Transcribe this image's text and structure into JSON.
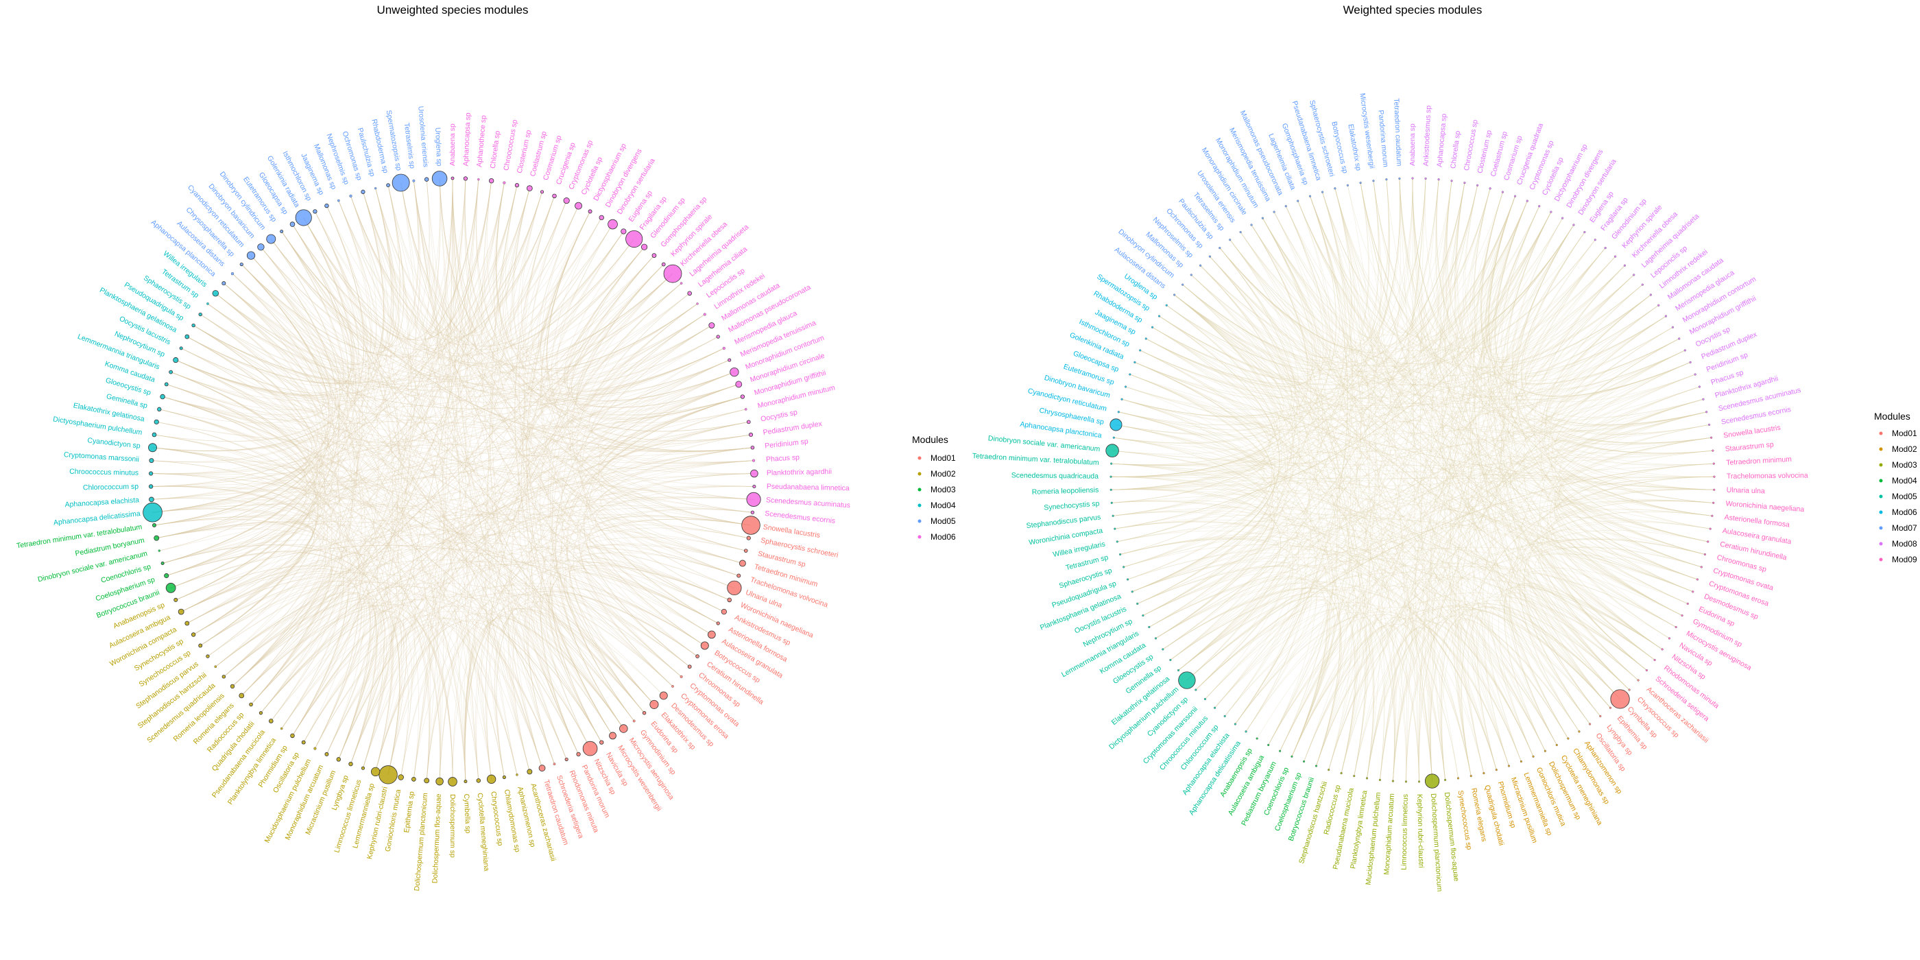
{
  "chart_data": [
    {
      "type": "chord",
      "title": "Unweighted species modules",
      "legend": {
        "title": "Modules",
        "placement": "right",
        "entries": [
          "Mod01",
          "Mod02",
          "Mod03",
          "Mod04",
          "Mod05",
          "Mod06"
        ]
      },
      "module_colors": {
        "Mod01": "#F8766D",
        "Mod02": "#B79F00",
        "Mod03": "#00BA38",
        "Mod04": "#00BFC4",
        "Mod05": "#619CFF",
        "Mod06": "#F564E3"
      },
      "edge_color": "#D9C9A3",
      "modules": [
        {
          "module": "Mod06",
          "species": [
            "Anabaena sp",
            "Aphanocapsa sp",
            "Aphanothece sp",
            "Chlorella sp",
            "Chroococcus sp",
            "Closterium sp",
            "Coelastrum sp",
            "Cosmarium sp",
            "Crucigenia sp",
            "Cryptomonas sp",
            "Cyclotella sp",
            "Dictyosphaerium sp",
            "Dinobryon divergens",
            "Dinobryon sertularia",
            "Euglena sp",
            "Fragilaria sp",
            "Glenodinium sp",
            "Gomphosphaeria sp",
            "Kephyrion spirale",
            "Kirchneriella obesa",
            "Lagerheimia quadriseta",
            "Lagerheimia ciliata",
            "Lepocinclis sp",
            "Limnothrix redekei",
            "Mallomonas caudata",
            "Mallomonas pseudocoronata",
            "Merismopedia glauca",
            "Merismopedia tenuissima",
            "Monoraphidium contortum",
            "Monoraphidium circinale",
            "Monoraphidium griffithii",
            "Monoraphidium minutum",
            "Oocystis sp",
            "Pediastrum duplex",
            "Peridinium sp",
            "Phacus sp",
            "Planktothrix agardhii",
            "Pseudanabaena limnetica",
            "Scenedesmus acuminatus",
            "Scenedesmus ecornis"
          ]
        },
        {
          "module": "Mod01",
          "species": [
            "Snowella lacustris",
            "Sphaerocystis schroeteri",
            "Staurastrum sp",
            "Tetraedron minimum",
            "Trachelomonas volvocina",
            "Ulnaria ulna",
            "Woronichinia naegeliana",
            "Ankistrodesmus sp",
            "Asterionella formosa",
            "Aulacoseira granulata",
            "Botryococcus sp",
            "Ceratium hirundinella",
            "Chroomonas sp",
            "Cryptomonas ovata",
            "Cryptomonas erosa",
            "Desmodesmus sp",
            "Elakatothrix sp",
            "Eudorina sp",
            "Gymnodinium sp",
            "Microcystis aeruginosa",
            "Microcystis wesenbergii",
            "Navicula sp",
            "Nitzschia sp",
            "Pandorina morum",
            "Rhodomonas minuta",
            "Schroederia setigera",
            "Tetraedron caudatum"
          ]
        },
        {
          "module": "Mod02",
          "species": [
            "Acanthoceras zachariasii",
            "Aphanizomenon sp",
            "Chlamydomonas sp",
            "Chrysococcus sp",
            "Cyclotella meneghiniana",
            "Cymbella sp",
            "Dolichospermum sp",
            "Dolichospermum flos-aquae",
            "Dolichospermum planctonicum",
            "Epithemia sp",
            "Goniochloris mutica",
            "Kephyrion rubri-claustri",
            "Lemmermanniella sp",
            "Limnococcus limneticus",
            "Lyngbya sp",
            "Micractinium pusillum",
            "Monoraphidium arcuatum",
            "Mucidosphaerium pulchellum",
            "Oscillatoria sp",
            "Phormidium sp",
            "Planktolyngbya limnetica",
            "Pseudanabaena mucicola",
            "Quadrigula chodatii",
            "Radiococcus sp",
            "Romeria elegans",
            "Romeria leopoliensis",
            "Scenedesmus quadricauda",
            "Stephanodiscus hantzschii",
            "Stephanodiscus parvus",
            "Synechococcus sp",
            "Synechocystis sp",
            "Woronichinia compacta",
            "Aulacoseira ambigua",
            "Anabaenopsis sp"
          ]
        },
        {
          "module": "Mod03",
          "species": [
            "Botryococcus braunii",
            "Coelosphaerium sp",
            "Coenochloris sp",
            "Dinobryon sociale var. americanum",
            "Pediastrum boryanum",
            "Tetraedron minimum var. tetralobulatum"
          ]
        },
        {
          "module": "Mod04",
          "species": [
            "Aphanocapsa delicatissima",
            "Aphanocapsa elachista",
            "Chlorococcum sp",
            "Chroococcus minutus",
            "Cryptomonas marssonii",
            "Cyanodictyon sp",
            "Dictyosphaerium pulchellum",
            "Elakatothrix gelatinosa",
            "Geminella sp",
            "Gloeocystis sp",
            "Komma caudata",
            "Lemmermannia triangularis",
            "Nephrocytium sp",
            "Oocystis lacustris",
            "Planktosphaeria gelatinosa",
            "Pseudoquadrigula sp",
            "Sphaerocystis sp",
            "Tetrastrum sp",
            "Willea irregularis"
          ]
        },
        {
          "module": "Mod05",
          "species": [
            "Aphanocapsa planctonica",
            "Aulacoseira distans",
            "Chrysosphaerella sp",
            "Cyanodictyon reticulatum",
            "Dinobryon bavaricum",
            "Dinobryon cylindricum",
            "Eutetramorus sp",
            "Gloeocapsa sp",
            "Golenkinia radiata",
            "Isthmochloron sp",
            "Jaaginema sp",
            "Mallomonas sp",
            "Nephroselmis sp",
            "Ochromonas sp",
            "Paulschulzia sp",
            "Rhabdoderma sp",
            "Spermatozopsis sp",
            "Tetraselmis sp",
            "Urosolenia eriensis",
            "Uroglena sp"
          ]
        }
      ]
    },
    {
      "type": "chord",
      "title": "Weighted species modules",
      "legend": {
        "title": "Modules",
        "placement": "right",
        "entries": [
          "Mod01",
          "Mod02",
          "Mod03",
          "Mod04",
          "Mod05",
          "Mod06",
          "Mod07",
          "Mod08",
          "Mod09"
        ]
      },
      "module_colors": {
        "Mod01": "#F8766D",
        "Mod02": "#D39200",
        "Mod03": "#93AA00",
        "Mod04": "#00BA38",
        "Mod05": "#00C19F",
        "Mod06": "#00B9E3",
        "Mod07": "#619CFF",
        "Mod08": "#DB72FB",
        "Mod09": "#FF61C3"
      },
      "edge_color": "#DED1A8",
      "modules": [
        {
          "module": "Mod08",
          "species": [
            "Anabaena sp",
            "Ankistrodesmus sp",
            "Aphanocapsa sp",
            "Chlorella sp",
            "Chroococcus sp",
            "Closterium sp",
            "Coelastrum sp",
            "Cosmarium sp",
            "Crucigenia quadrata",
            "Cryptomonas sp",
            "Cyclotella sp",
            "Dictyosphaerium sp",
            "Dinobryon divergens",
            "Dinobryon sertularia",
            "Euglena sp",
            "Fragilaria sp",
            "Glenodinium sp",
            "Kephyrion spirale",
            "Kirchneriella obesa",
            "Lagerheimia quadriseta",
            "Lepocinclis sp",
            "Limnothrix redekei",
            "Mallomonas caudata",
            "Merismopedia glauca",
            "Monoraphidium contortum",
            "Monoraphidium griffithii",
            "Oocystis sp",
            "Pediastrum duplex",
            "Peridinium sp",
            "Phacus sp",
            "Planktothrix agardhii",
            "Scenedesmus acuminatus",
            "Scenedesmus ecornis"
          ]
        },
        {
          "module": "Mod09",
          "species": [
            "Snowella lacustris",
            "Staurastrum sp",
            "Tetraedron minimum",
            "Trachelomonas volvocina",
            "Ulnaria ulna",
            "Woronichinia naegeliana",
            "Asterionella formosa",
            "Aulacoseira granulata",
            "Ceratium hirundinella",
            "Chroomonas sp",
            "Cryptomonas ovata",
            "Cryptomonas erosa",
            "Desmodesmus sp",
            "Eudorina sp",
            "Gymnodinium sp",
            "Microcystis aeruginosa",
            "Navicula sp",
            "Nitzschia sp",
            "Rhodomonas minuta",
            "Schroederia setigera"
          ]
        },
        {
          "module": "Mod01",
          "species": [
            "Acanthoceras zachariasii",
            "Chrysococcus sp",
            "Cymbella sp",
            "Epithemia sp",
            "Lyngbya sp",
            "Oscillatoria sp"
          ]
        },
        {
          "module": "Mod02",
          "species": [
            "Aphanizomenon sp",
            "Chlamydomonas sp",
            "Cyclotella meneghiniana",
            "Dolichospermum sp",
            "Goniochloris mutica",
            "Lemmermanniella sp",
            "Micractinium pusillum",
            "Phormidium sp",
            "Quadrigula chodatii",
            "Romeria elegans",
            "Synechococcus sp"
          ]
        },
        {
          "module": "Mod03",
          "species": [
            "Dolichospermum flos-aquae",
            "Dolichospermum planctonicum",
            "Kephyrion rubri-claustri",
            "Limnococcus limneticus",
            "Monoraphidium arcuatum",
            "Mucidosphaerium pulchellum",
            "Planktolyngbya limnetica",
            "Pseudanabaena mucicola",
            "Radiococcus sp",
            "Stephanodiscus hantzschii"
          ]
        },
        {
          "module": "Mod04",
          "species": [
            "Botryococcus braunii",
            "Coelosphaerium sp",
            "Coenochloris sp",
            "Pediastrum boryanum",
            "Aulacoseira ambigua",
            "Anabaenopsis sp"
          ]
        },
        {
          "module": "Mod05",
          "species": [
            "Aphanocapsa delicatissima",
            "Aphanocapsa elachista",
            "Chlorococcum sp",
            "Chroococcus minutus",
            "Cryptomonas marssonii",
            "Cyanodictyon sp",
            "Dictyosphaerium pulchellum",
            "Elakatothrix gelatinosa",
            "Geminella sp",
            "Gloeocystis sp",
            "Komma caudata",
            "Lemmermannia triangularis",
            "Nephrocytium sp",
            "Oocystis lacustris",
            "Planktosphaeria gelatinosa",
            "Pseudoquadrigula sp",
            "Sphaerocystis sp",
            "Tetrastrum sp",
            "Willea irregularis",
            "Woronichinia compacta",
            "Stephanodiscus parvus",
            "Synechocystis sp",
            "Romeria leopoliensis",
            "Scenedesmus quadricauda",
            "Tetraedron minimum var. tetralobulatum",
            "Dinobryon sociale var. americanum"
          ]
        },
        {
          "module": "Mod06",
          "species": [
            "Aphanocapsa planctonica",
            "Chrysosphaerella sp",
            "Cyanodictyon reticulatum",
            "Dinobryon bavaricum",
            "Eutetramorus sp",
            "Gloeocapsa sp",
            "Golenkinia radiata",
            "Isthmochloron sp",
            "Jaaginema sp",
            "Rhabdoderma sp",
            "Spermatozopsis sp",
            "Uroglena sp"
          ]
        },
        {
          "module": "Mod07",
          "species": [
            "Aulacoseira distans",
            "Dinobryon cylindricum",
            "Mallomonas sp",
            "Nephroselmis sp",
            "Ochromonas sp",
            "Paulschulzia sp",
            "Tetraselmis sp",
            "Urosolenia eriensis",
            "Monoraphidium circinale",
            "Monoraphidium minutum",
            "Merismopedia tenuissima",
            "Mallomonas pseudocoronata",
            "Lagerheimia ciliata",
            "Gomphosphaeria sp",
            "Pseudanabaena limnetica",
            "Sphaerocystis schroeteri",
            "Botryococcus sp",
            "Elakatothrix sp",
            "Microcystis wesenbergii",
            "Pandorina morum",
            "Tetraedron caudatum"
          ]
        }
      ]
    }
  ]
}
